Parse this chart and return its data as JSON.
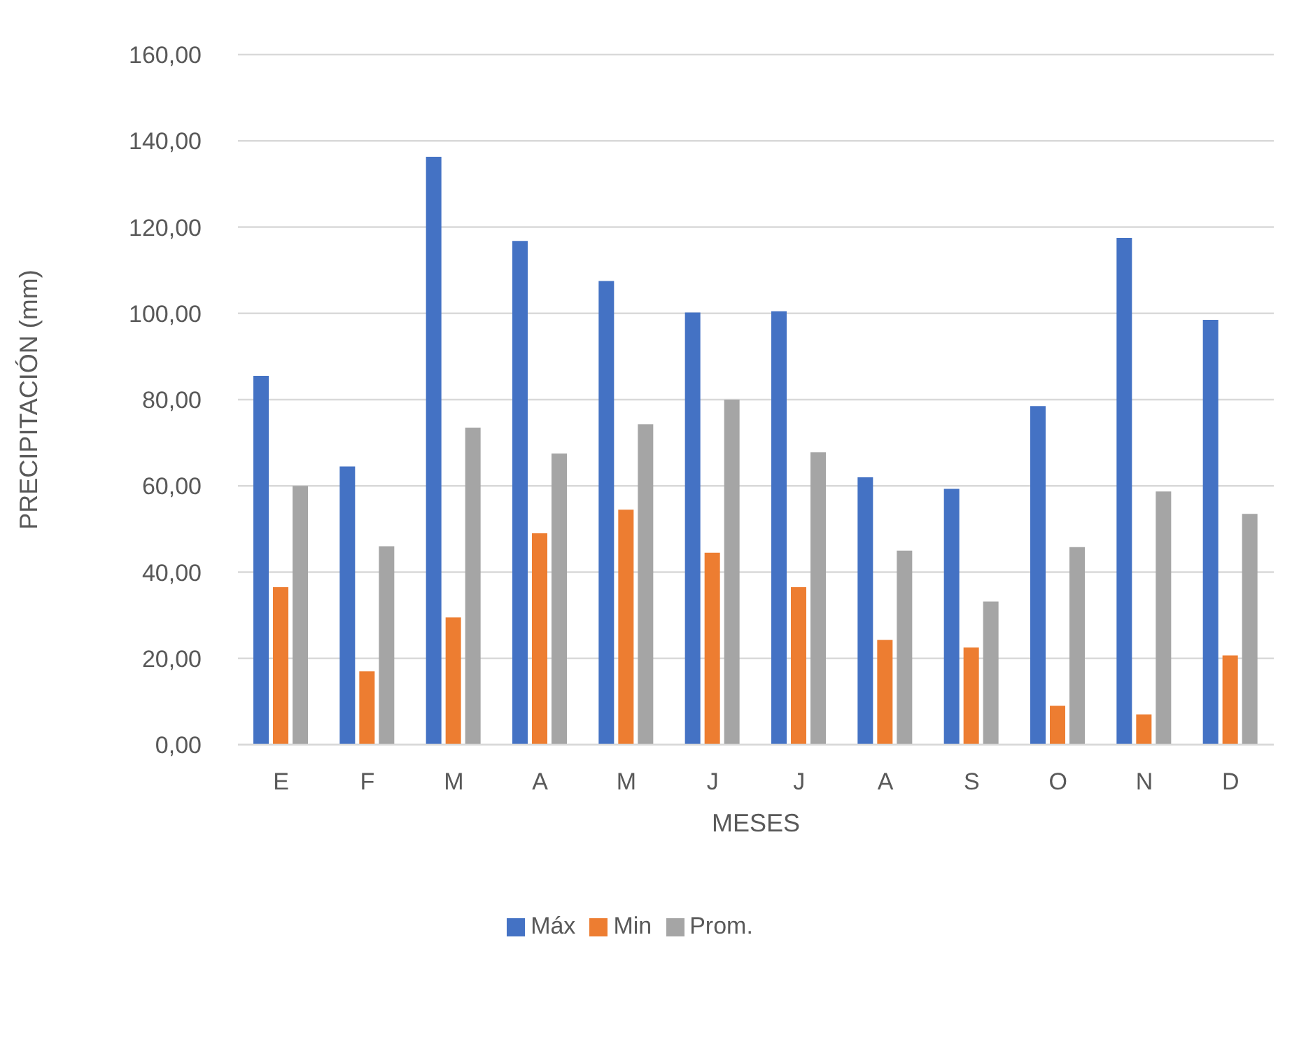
{
  "chart_data": {
    "type": "bar",
    "xlabel": "MESES",
    "ylabel": "PRECIPITACIÓN (mm)",
    "categories": [
      "E",
      "F",
      "M",
      "A",
      "M",
      "J",
      "J",
      "A",
      "S",
      "O",
      "N",
      "D"
    ],
    "series": [
      {
        "name": "Máx",
        "color": "#4472c4",
        "values": [
          85.5,
          64.5,
          136.3,
          116.8,
          107.5,
          100.2,
          100.5,
          62,
          59.3,
          78.5,
          117.5,
          98.5
        ]
      },
      {
        "name": "Min",
        "color": "#ed7d31",
        "values": [
          36.5,
          17,
          29.5,
          49,
          54.5,
          44.5,
          36.5,
          24.3,
          22.5,
          9,
          7,
          20.7
        ]
      },
      {
        "name": "Prom.",
        "color": "#a5a5a5",
        "values": [
          60,
          46,
          73.5,
          67.5,
          74.3,
          80,
          67.8,
          45,
          33.2,
          45.8,
          58.7,
          53.5
        ]
      }
    ],
    "ylim": [
      0,
      160
    ],
    "yticks": [
      {
        "value": 0,
        "label": "0,00"
      },
      {
        "value": 20,
        "label": "20,00"
      },
      {
        "value": 40,
        "label": "40,00"
      },
      {
        "value": 60,
        "label": "60,00"
      },
      {
        "value": 80,
        "label": "80,00"
      },
      {
        "value": 100,
        "label": "100,00"
      },
      {
        "value": 120,
        "label": "120,00"
      },
      {
        "value": 140,
        "label": "140,00"
      },
      {
        "value": 160,
        "label": "160,00"
      }
    ],
    "grid": "y",
    "legend": "bottom"
  }
}
